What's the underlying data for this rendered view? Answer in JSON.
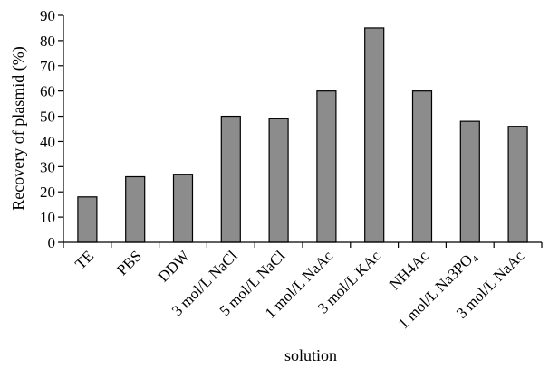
{
  "chart_data": {
    "type": "bar",
    "categories": [
      "TE",
      "PBS",
      "DDW",
      "3 mol/L NaCl",
      "5 mol/L NaCl",
      "1 mol/L NaAc",
      "3 mol/L KAc",
      "NH4Ac",
      "1 mol/L Na3PO₄",
      "3 mol/L NaAc"
    ],
    "values": [
      18,
      26,
      27,
      50,
      49,
      60,
      85,
      60,
      48,
      46
    ],
    "title": "",
    "xlabel": "solution",
    "ylabel": "Recovery of plasmid (%)",
    "ylim": [
      0,
      90
    ],
    "yticks": [
      0,
      10,
      20,
      30,
      40,
      50,
      60,
      70,
      80,
      90
    ],
    "grid": false,
    "legend": "none",
    "bar_color": "#8c8c8c"
  }
}
